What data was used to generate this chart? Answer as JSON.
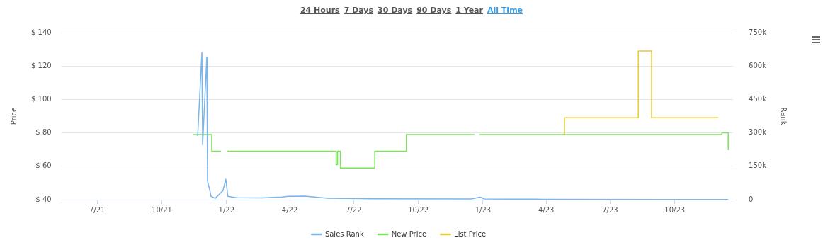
{
  "chart_data": {
    "type": "step",
    "ylabel": "Price",
    "y2label": "Rank",
    "annotations": [
      "24 Hours",
      "7 Days",
      "30 Days",
      "90 Days",
      "1 Year",
      "All Time"
    ],
    "xlim": [
      "2021-05-11",
      "2023-12-23"
    ],
    "xticks": [
      {
        "value": "2021-07-01",
        "label": "7/21"
      },
      {
        "value": "2021-10-01",
        "label": "10/21"
      },
      {
        "value": "2022-01-01",
        "label": "1/22"
      },
      {
        "value": "2022-04-01",
        "label": "4/22"
      },
      {
        "value": "2022-07-01",
        "label": "7/22"
      },
      {
        "value": "2022-10-01",
        "label": "10/22"
      },
      {
        "value": "2023-01-01",
        "label": "1/23"
      },
      {
        "value": "2023-04-01",
        "label": "4/23"
      },
      {
        "value": "2023-07-01",
        "label": "7/23"
      },
      {
        "value": "2023-10-01",
        "label": "10/23"
      }
    ],
    "ylim": [
      40,
      140
    ],
    "yticks": [
      {
        "value": 40,
        "label": "$ 40"
      },
      {
        "value": 60,
        "label": "$ 60"
      },
      {
        "value": 80,
        "label": "$ 80"
      },
      {
        "value": 100,
        "label": "$ 100"
      },
      {
        "value": 120,
        "label": "$ 120"
      },
      {
        "value": 140,
        "label": "$ 140"
      }
    ],
    "y2lim": [
      0,
      750000
    ],
    "y2ticks": [
      0,
      {
        "value": 150000,
        "label": "150k"
      },
      {
        "value": 300000,
        "label": "300k"
      },
      {
        "value": 450000,
        "label": "450k"
      },
      {
        "value": 600000,
        "label": "600k"
      },
      {
        "value": 750000,
        "label": "750k"
      }
    ],
    "grid": "y",
    "legend": "bottom",
    "marker": "none",
    "line_style": "solid",
    "series": [
      {
        "name": "Sales Rank",
        "type": "line",
        "axis": "y2",
        "color": "#7cb5ec",
        "x": [
          "2021-11-21",
          "2021-11-27",
          "2021-11-28",
          "2021-12-04",
          "2021-12-05",
          "2021-12-08",
          "2021-12-10",
          "2021-12-16",
          "2021-12-27",
          "2021-12-31",
          "2022-01-03",
          "2022-01-15",
          "2022-02-21",
          "2022-03-21",
          "2022-03-30",
          "2022-04-22",
          "2022-05-06",
          "2022-05-25",
          "2022-07-29",
          "2022-12-15",
          "2022-12-28",
          "2023-01-03",
          "2023-03-18",
          "2023-09-20",
          "2023-12-16"
        ],
        "values": [
          286000,
          661000,
          246000,
          640000,
          83000,
          46000,
          15000,
          6000,
          41000,
          92000,
          15000,
          9000,
          8000,
          12000,
          15000,
          16000,
          12000,
          6000,
          4000,
          3000,
          11000,
          3000,
          2000,
          1000,
          1000
        ]
      },
      {
        "name": "New Price",
        "axis": "y",
        "color": "#7fe05f",
        "x": [
          "2021-11-14",
          "2021-12-11",
          "2021-12-24",
          "2021-12-25",
          "2022-01-02",
          "2022-06-06",
          "2022-06-08",
          "2022-06-12",
          "2022-07-31",
          "2022-09-14",
          "2022-12-20",
          "2022-12-21",
          "2022-12-27",
          "2023-12-07",
          "2023-12-16",
          "2023-12-17"
        ],
        "values": [
          79,
          69,
          69,
          null,
          69,
          61,
          69,
          59,
          69,
          79,
          79,
          null,
          79,
          80,
          70,
          70
        ]
      },
      {
        "name": "List Price",
        "axis": "y",
        "color": "#e8c93a",
        "x": [
          "2023-04-24",
          "2023-04-27",
          "2023-08-10",
          "2023-08-29",
          "2023-12-02"
        ],
        "values": [
          79,
          89,
          129,
          89,
          89
        ]
      }
    ]
  }
}
